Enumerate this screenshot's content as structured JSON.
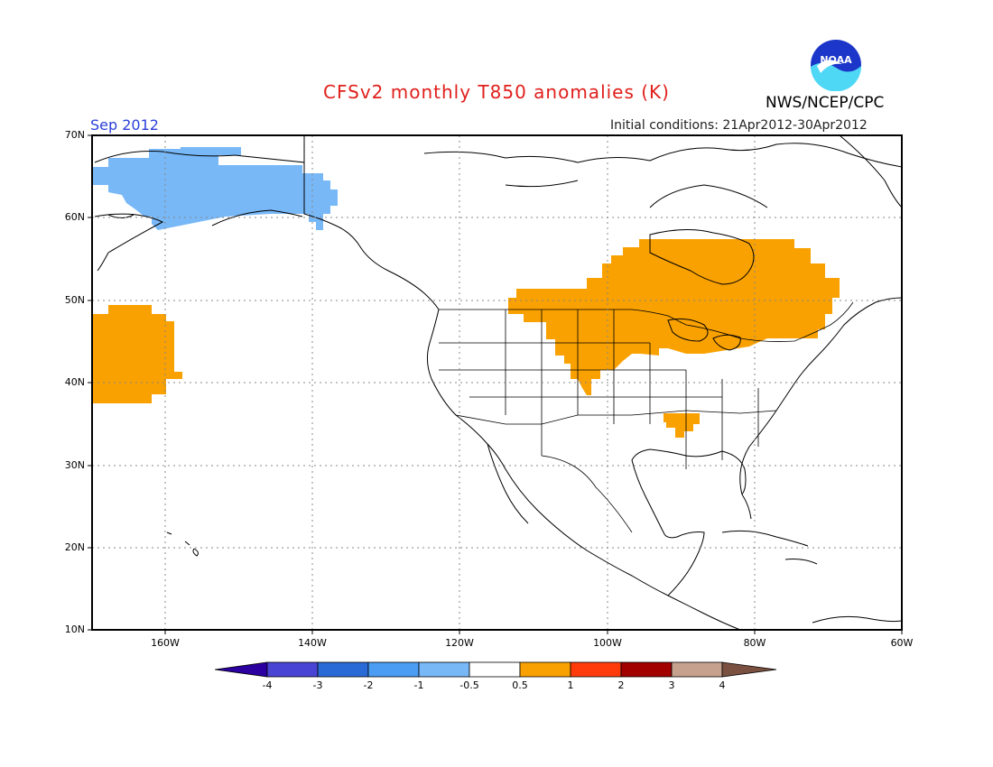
{
  "header": {
    "title": "CFSv2 monthly T850 anomalies (K)",
    "credit": "NWS/NCEP/CPC",
    "logo_text": "NOAA",
    "month": "Sep 2012",
    "initial_conditions": "Initial conditions: 21Apr2012-30Apr2012"
  },
  "map": {
    "lat_labels": [
      "70N",
      "60N",
      "50N",
      "40N",
      "30N",
      "20N",
      "10N"
    ],
    "lon_labels": [
      "160W",
      "140W",
      "120W",
      "100W",
      "80W",
      "60W"
    ],
    "lon_range": [
      -170,
      -60
    ],
    "lat_range": [
      10,
      70
    ],
    "grid": "dotted",
    "anomaly_regions": [
      {
        "name": "alaska-bering",
        "sign": "negative",
        "class": "-1 to -0.5",
        "color": "#78b8f7"
      },
      {
        "name": "north-pacific",
        "sign": "positive",
        "class": "0.5 to 1",
        "color": "#f9a100"
      },
      {
        "name": "central-canada-northern-us",
        "sign": "positive",
        "class": "0.5 to 1",
        "color": "#f9a100"
      },
      {
        "name": "tennessee-valley",
        "sign": "positive",
        "class": "0.5 to 1",
        "color": "#f9a100"
      }
    ]
  },
  "colorbar": {
    "labels": [
      "-4",
      "-3",
      "-2",
      "-1",
      "-0.5",
      "0.5",
      "1",
      "2",
      "3",
      "4"
    ],
    "colors": [
      "#2c00a0",
      "#4a44d4",
      "#2a6ad6",
      "#4a9df2",
      "#78b8f7",
      "#ffffff",
      "#f9a100",
      "#ff3b0c",
      "#a20000",
      "#c6a18e",
      "#7a5040"
    ]
  }
}
